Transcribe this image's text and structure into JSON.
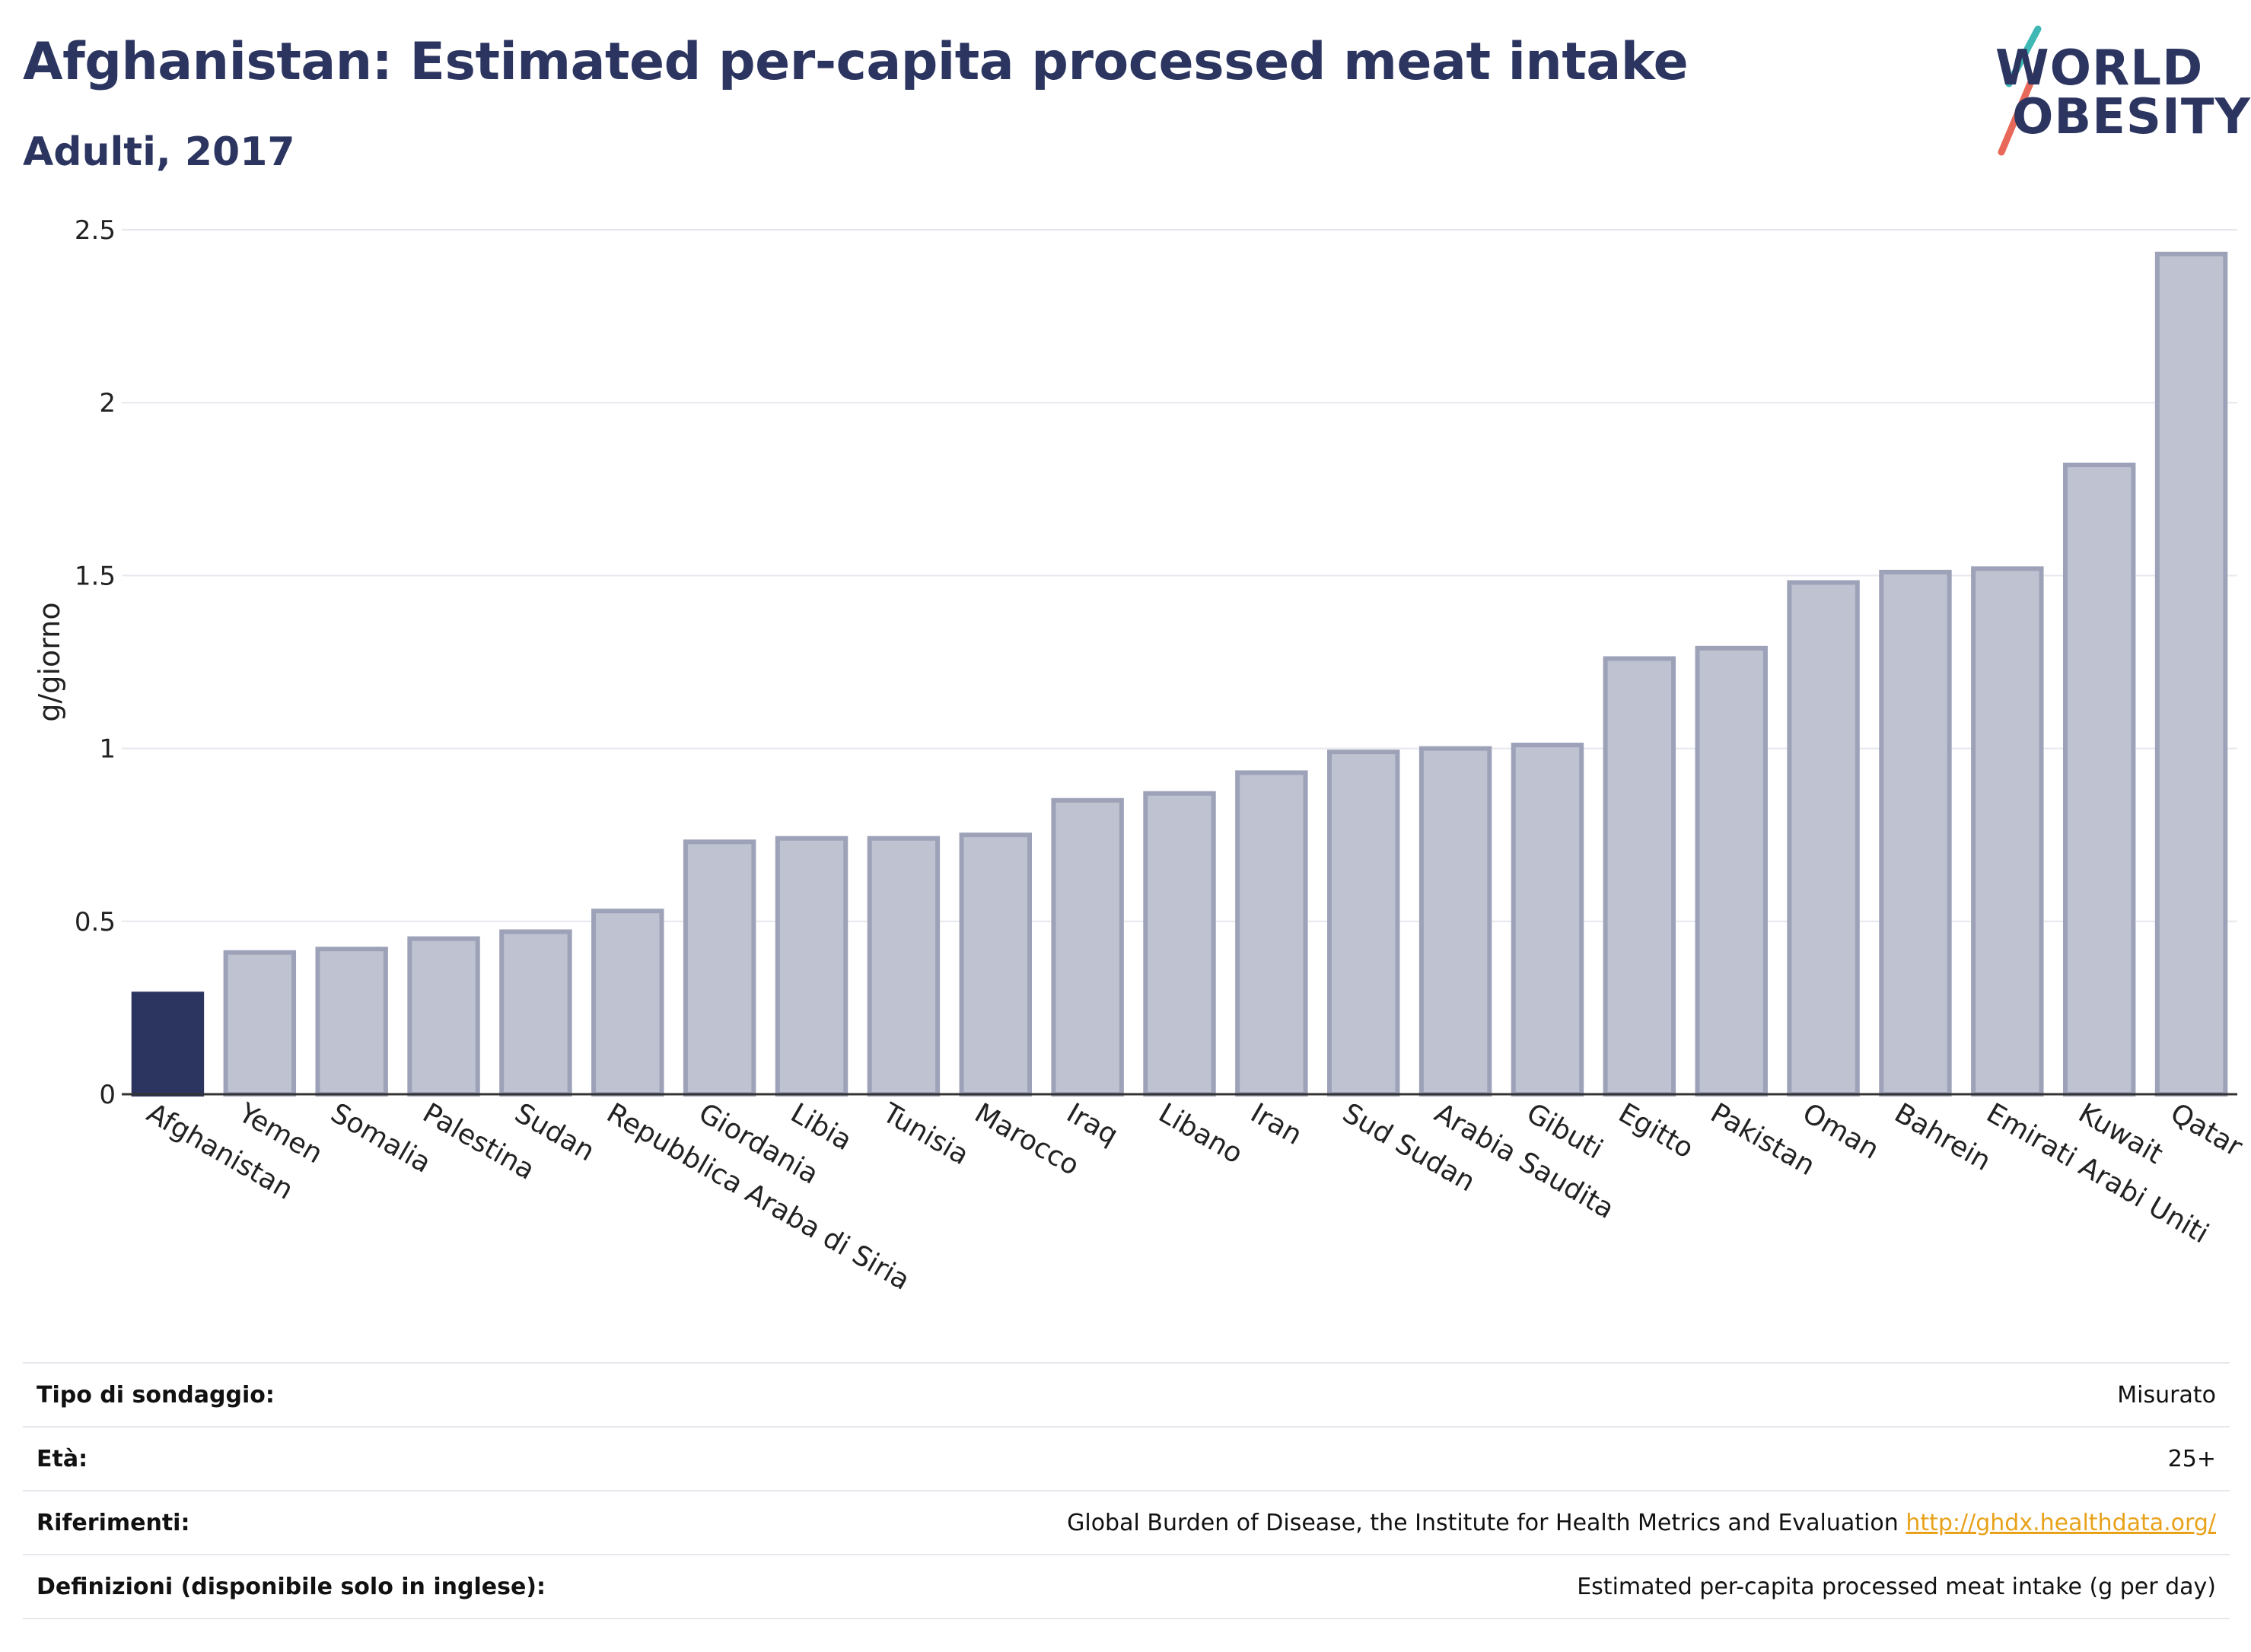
{
  "header": {
    "title": "Afghanistan: Estimated per-capita processed meat intake",
    "subtitle": "Adulti, 2017"
  },
  "logo": {
    "line1": "WORLD",
    "line2": "OBESITY",
    "slash_colors": [
      "#3fb8b5",
      "#e8695a"
    ]
  },
  "chart_data": {
    "type": "bar",
    "title": "Afghanistan: Estimated per-capita processed meat intake",
    "subtitle": "Adulti, 2017",
    "xlabel": "",
    "ylabel": "g/giorno",
    "ylim": [
      0,
      2.5
    ],
    "yticks": [
      0,
      0.5,
      1,
      1.5,
      2,
      2.5
    ],
    "ytick_labels": [
      "0",
      "0.5",
      "1",
      "1.5",
      "2",
      "2.5"
    ],
    "grid": true,
    "highlight_category": "Afghanistan",
    "colors": {
      "highlight": "#2b3560",
      "default": "#bfc2d0",
      "default_border": "#9da2b8"
    },
    "categories": [
      "Afghanistan",
      "Yemen",
      "Somalia",
      "Palestina",
      "Sudan",
      "Repubblica Araba di Siria",
      "Giordania",
      "Libia",
      "Tunisia",
      "Marocco",
      "Iraq",
      "Libano",
      "Iran",
      "Sud Sudan",
      "Arabia Saudita",
      "Gibuti",
      "Egitto",
      "Pakistan",
      "Oman",
      "Bahrein",
      "Emirati Arabi Uniti",
      "Kuwait",
      "Qatar"
    ],
    "values": [
      0.29,
      0.41,
      0.42,
      0.45,
      0.47,
      0.53,
      0.73,
      0.74,
      0.74,
      0.75,
      0.85,
      0.87,
      0.93,
      0.99,
      1.0,
      1.01,
      1.26,
      1.29,
      1.48,
      1.51,
      1.52,
      1.82,
      2.43
    ]
  },
  "info": [
    {
      "label": "Tipo di sondaggio:",
      "value": "Misurato"
    },
    {
      "label": "Età:",
      "value": "25+"
    },
    {
      "label": "Riferimenti:",
      "value": "Global Burden of Disease, the Institute for Health Metrics and Evaluation",
      "link": "http://ghdx.healthdata.org/"
    },
    {
      "label": "Definizioni (disponibile solo in inglese):",
      "value": "Estimated per-capita processed meat intake (g per day)"
    }
  ]
}
